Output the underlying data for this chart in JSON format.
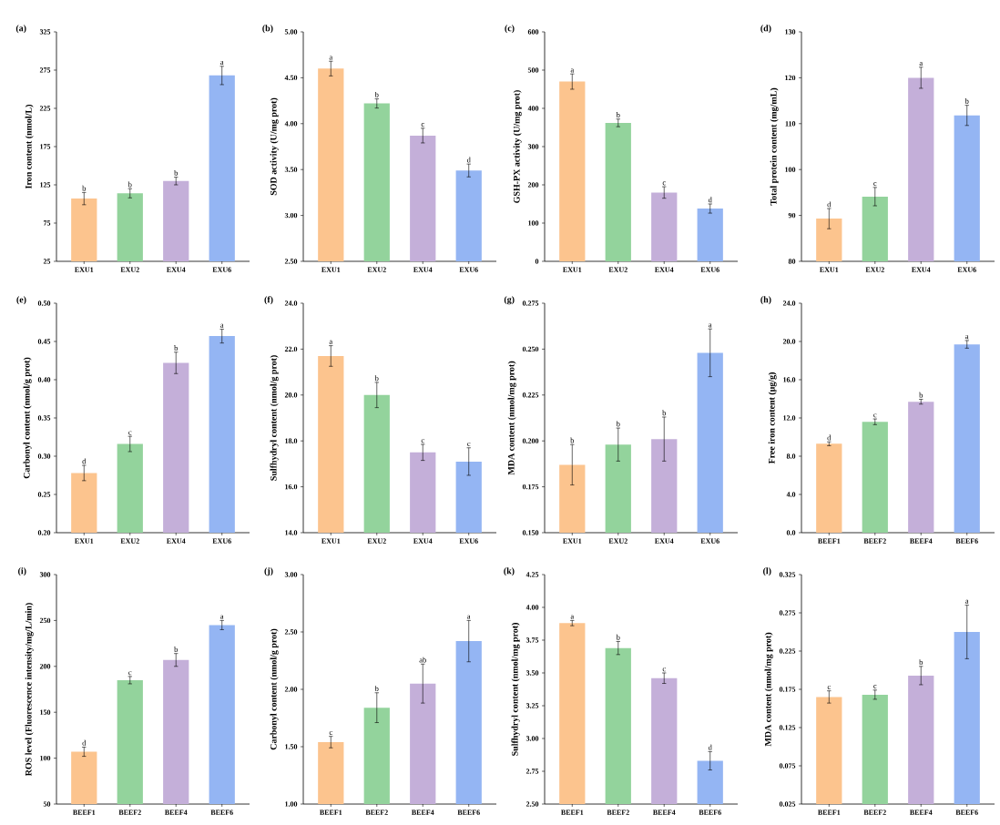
{
  "chart_data": [
    {
      "type": "bar",
      "title": "(a)",
      "ylabel": "Iron content (nmol/L)",
      "categories": [
        "EXU1",
        "EXU2",
        "EXU4",
        "EXU6"
      ],
      "values": [
        107,
        114,
        130,
        268
      ],
      "errors": [
        8,
        6,
        5,
        12
      ],
      "colors": [
        "#fcc48e",
        "#93d39c",
        "#c4afd9",
        "#94b5f3"
      ],
      "ylim": [
        25,
        325
      ],
      "yticks": [
        25,
        75,
        125,
        175,
        225,
        275,
        325
      ],
      "annotations": [
        {
          "text": "b",
          "x": "EXU1",
          "y": 115
        },
        {
          "text": "b",
          "x": "EXU2",
          "y": 120
        },
        {
          "text": "b",
          "x": "EXU4",
          "y": 135
        },
        {
          "text": "a",
          "x": "EXU6",
          "y": 280
        }
      ]
    },
    {
      "type": "bar",
      "title": "(b)",
      "ylabel": "SOD activity (U/mg prot)",
      "categories": [
        "EXU1",
        "EXU2",
        "EXU4",
        "EXU6"
      ],
      "values": [
        4.6,
        4.22,
        3.87,
        3.49
      ],
      "errors": [
        0.08,
        0.05,
        0.08,
        0.07
      ],
      "colors": [
        "#fcc48e",
        "#93d39c",
        "#c4afd9",
        "#94b5f3"
      ],
      "ylim": [
        2.5,
        5.0
      ],
      "yticks": [
        {
          "value": 2.5,
          "label": "2.50"
        },
        {
          "value": 3.0,
          "label": "3.00"
        },
        {
          "value": 3.5,
          "label": "3.50"
        },
        {
          "value": 4.0,
          "label": "4.00"
        },
        {
          "value": 4.5,
          "label": "4.50"
        },
        {
          "value": 5.0,
          "label": "5.00"
        }
      ],
      "annotations": [
        {
          "text": "a",
          "x": "EXU1",
          "y": 4.68
        },
        {
          "text": "b",
          "x": "EXU2",
          "y": 4.27
        },
        {
          "text": "c",
          "x": "EXU4",
          "y": 3.95
        },
        {
          "text": "d",
          "x": "EXU6",
          "y": 3.56
        }
      ]
    },
    {
      "type": "bar",
      "title": "(c)",
      "ylabel": "GSH-PX activity (U/mg prot)",
      "categories": [
        "EXU1",
        "EXU2",
        "EXU4",
        "EXU6"
      ],
      "values": [
        470,
        362,
        180,
        138
      ],
      "errors": [
        20,
        10,
        15,
        12
      ],
      "colors": [
        "#fcc48e",
        "#93d39c",
        "#c4afd9",
        "#94b5f3"
      ],
      "ylim": [
        0,
        600
      ],
      "yticks": [
        0,
        100,
        200,
        300,
        400,
        500,
        600
      ],
      "annotations": [
        {
          "text": "a",
          "x": "EXU1",
          "y": 490
        },
        {
          "text": "b",
          "x": "EXU2",
          "y": 372
        },
        {
          "text": "c",
          "x": "EXU4",
          "y": 195
        },
        {
          "text": "d",
          "x": "EXU6",
          "y": 150
        }
      ]
    },
    {
      "type": "bar",
      "title": "(d)",
      "ylabel": "Total protein content (mg/mL)",
      "categories": [
        "EXU1",
        "EXU2",
        "EXU4",
        "EXU6"
      ],
      "values": [
        89.3,
        94.1,
        120.0,
        111.8
      ],
      "errors": [
        2.2,
        2.0,
        2.3,
        2.2
      ],
      "colors": [
        "#fcc48e",
        "#93d39c",
        "#c4afd9",
        "#94b5f3"
      ],
      "ylim": [
        80,
        130
      ],
      "yticks": [
        80,
        90,
        100,
        110,
        120,
        130
      ],
      "annotations": [
        {
          "text": "d",
          "x": "EXU1",
          "y": 91.5
        },
        {
          "text": "c",
          "x": "EXU2",
          "y": 96.1
        },
        {
          "text": "a",
          "x": "EXU4",
          "y": 122.3
        },
        {
          "text": "b",
          "x": "EXU6",
          "y": 114.0
        }
      ]
    },
    {
      "type": "bar",
      "title": "(e)",
      "ylabel": "Carbonyl content (nmol/g prot)",
      "categories": [
        "EXU1",
        "EXU2",
        "EXU4",
        "EXU6"
      ],
      "values": [
        0.278,
        0.316,
        0.422,
        0.457
      ],
      "errors": [
        0.01,
        0.01,
        0.014,
        0.009
      ],
      "colors": [
        "#fcc48e",
        "#93d39c",
        "#c4afd9",
        "#94b5f3"
      ],
      "ylim": [
        0.2,
        0.5
      ],
      "yticks": [
        {
          "value": 0.2,
          "label": "0.20"
        },
        {
          "value": 0.25,
          "label": "0.25"
        },
        {
          "value": 0.3,
          "label": "0.30"
        },
        {
          "value": 0.35,
          "label": "0.35"
        },
        {
          "value": 0.4,
          "label": "0.40"
        },
        {
          "value": 0.45,
          "label": "0.45"
        },
        {
          "value": 0.5,
          "label": "0.50"
        }
      ],
      "annotations": [
        {
          "text": "d",
          "x": "EXU1",
          "y": 0.288
        },
        {
          "text": "c",
          "x": "EXU2",
          "y": 0.326
        },
        {
          "text": "b",
          "x": "EXU4",
          "y": 0.436
        },
        {
          "text": "a",
          "x": "EXU6",
          "y": 0.466
        }
      ]
    },
    {
      "type": "bar",
      "title": "(f)",
      "ylabel": "Sulfhydryl content (nmol/g prot)",
      "categories": [
        "EXU1",
        "EXU2",
        "EXU4",
        "EXU6"
      ],
      "values": [
        21.7,
        20.0,
        17.5,
        17.1
      ],
      "errors": [
        0.45,
        0.55,
        0.35,
        0.6
      ],
      "colors": [
        "#fcc48e",
        "#93d39c",
        "#c4afd9",
        "#94b5f3"
      ],
      "ylim": [
        14.0,
        24.0
      ],
      "yticks": [
        {
          "value": 14,
          "label": "14.0"
        },
        {
          "value": 16,
          "label": "16.0"
        },
        {
          "value": 18,
          "label": "18.0"
        },
        {
          "value": 20,
          "label": "20.0"
        },
        {
          "value": 22,
          "label": "22.0"
        },
        {
          "value": 24,
          "label": "24.0"
        }
      ],
      "annotations": [
        {
          "text": "a",
          "x": "EXU1",
          "y": 22.15
        },
        {
          "text": "b",
          "x": "EXU2",
          "y": 20.55
        },
        {
          "text": "c",
          "x": "EXU4",
          "y": 17.85
        },
        {
          "text": "c",
          "x": "EXU6",
          "y": 17.7
        }
      ]
    },
    {
      "type": "bar",
      "title": "(g)",
      "ylabel": "MDA content (nmol/mg prot)",
      "categories": [
        "EXU1",
        "EXU2",
        "EXU4",
        "EXU6"
      ],
      "values": [
        0.187,
        0.198,
        0.201,
        0.248
      ],
      "errors": [
        0.011,
        0.009,
        0.012,
        0.013
      ],
      "colors": [
        "#fcc48e",
        "#93d39c",
        "#c4afd9",
        "#94b5f3"
      ],
      "ylim": [
        0.15,
        0.275
      ],
      "yticks": [
        {
          "value": 0.15,
          "label": "0.150"
        },
        0.175,
        {
          "value": 0.2,
          "label": "0.200"
        },
        0.225,
        {
          "value": 0.25,
          "label": "0.250"
        },
        0.275
      ],
      "annotations": [
        {
          "text": "b",
          "x": "EXU1",
          "y": 0.198
        },
        {
          "text": "b",
          "x": "EXU2",
          "y": 0.207
        },
        {
          "text": "b",
          "x": "EXU4",
          "y": 0.213
        },
        {
          "text": "a",
          "x": "EXU6",
          "y": 0.261
        }
      ]
    },
    {
      "type": "bar",
      "title": "(h)",
      "ylabel": "Free iron content (μg/g)",
      "categories": [
        "BEEF1",
        "BEEF2",
        "BEEF4",
        "BEEF6"
      ],
      "values": [
        9.3,
        11.6,
        13.7,
        19.7
      ],
      "errors": [
        0.2,
        0.3,
        0.25,
        0.4
      ],
      "colors": [
        "#fcc48e",
        "#93d39c",
        "#c4afd9",
        "#94b5f3"
      ],
      "ylim": [
        0,
        24
      ],
      "yticks": [
        {
          "value": 0,
          "label": "0.0"
        },
        {
          "value": 4,
          "label": "4.0"
        },
        {
          "value": 8,
          "label": "8.0"
        },
        {
          "value": 12,
          "label": "12.0"
        },
        {
          "value": 16,
          "label": "16.0"
        },
        {
          "value": 20,
          "label": "20.0"
        },
        {
          "value": 24,
          "label": "24.0"
        }
      ],
      "annotations": [
        {
          "text": "d",
          "x": "BEEF1",
          "y": 9.5
        },
        {
          "text": "c",
          "x": "BEEF2",
          "y": 11.9
        },
        {
          "text": "b",
          "x": "BEEF4",
          "y": 13.95
        },
        {
          "text": "a",
          "x": "BEEF6",
          "y": 20.1
        }
      ]
    },
    {
      "type": "bar",
      "title": "(i)",
      "ylabel": "ROS level (Fluorescence intensity/mg/L/min)",
      "categories": [
        "BEEF1",
        "BEEF2",
        "BEEF4",
        "BEEF6"
      ],
      "values": [
        107,
        185,
        207,
        245
      ],
      "errors": [
        5,
        4,
        7,
        5
      ],
      "colors": [
        "#fcc48e",
        "#93d39c",
        "#c4afd9",
        "#94b5f3"
      ],
      "ylim": [
        50,
        300
      ],
      "yticks": [
        50,
        100,
        150,
        200,
        250,
        300
      ],
      "annotations": [
        {
          "text": "d",
          "x": "BEEF1",
          "y": 112
        },
        {
          "text": "c",
          "x": "BEEF2",
          "y": 189
        },
        {
          "text": "b",
          "x": "BEEF4",
          "y": 214
        },
        {
          "text": "a",
          "x": "BEEF6",
          "y": 250
        }
      ]
    },
    {
      "type": "bar",
      "title": "(j)",
      "ylabel": "Carbonyl content (nmol/g prot)",
      "categories": [
        "BEEF1",
        "BEEF2",
        "BEEF4",
        "BEEF6"
      ],
      "values": [
        1.54,
        1.84,
        2.05,
        2.42
      ],
      "errors": [
        0.05,
        0.13,
        0.17,
        0.18
      ],
      "colors": [
        "#fcc48e",
        "#93d39c",
        "#c4afd9",
        "#94b5f3"
      ],
      "ylim": [
        1.0,
        3.0
      ],
      "yticks": [
        {
          "value": 1.0,
          "label": "1.00"
        },
        {
          "value": 1.5,
          "label": "1.50"
        },
        {
          "value": 2.0,
          "label": "2.00"
        },
        {
          "value": 2.5,
          "label": "2.50"
        },
        {
          "value": 3.0,
          "label": "3.00"
        }
      ],
      "annotations": [
        {
          "text": "c",
          "x": "BEEF1",
          "y": 1.59
        },
        {
          "text": "b",
          "x": "BEEF2",
          "y": 1.97
        },
        {
          "text": "ab",
          "x": "BEEF4",
          "y": 2.22
        },
        {
          "text": "a",
          "x": "BEEF6",
          "y": 2.6
        }
      ]
    },
    {
      "type": "bar",
      "title": "(k)",
      "ylabel": "Sulfhydryl content (nmol/mg prot)",
      "categories": [
        "BEEF1",
        "BEEF2",
        "BEEF4",
        "BEEF6"
      ],
      "values": [
        3.88,
        3.69,
        3.46,
        2.83
      ],
      "errors": [
        0.02,
        0.05,
        0.04,
        0.07
      ],
      "colors": [
        "#fcc48e",
        "#93d39c",
        "#c4afd9",
        "#94b5f3"
      ],
      "ylim": [
        2.5,
        4.25
      ],
      "yticks": [
        {
          "value": 2.5,
          "label": "2.50"
        },
        2.75,
        {
          "value": 3.0,
          "label": "3.00"
        },
        3.25,
        {
          "value": 3.5,
          "label": "3.50"
        },
        3.75,
        {
          "value": 4.0,
          "label": "4.00"
        },
        4.25
      ],
      "annotations": [
        {
          "text": "a",
          "x": "BEEF1",
          "y": 3.9
        },
        {
          "text": "b",
          "x": "BEEF2",
          "y": 3.74
        },
        {
          "text": "c",
          "x": "BEEF4",
          "y": 3.5
        },
        {
          "text": "d",
          "x": "BEEF6",
          "y": 2.9
        }
      ]
    },
    {
      "type": "bar",
      "title": "(l)",
      "ylabel": "MDA content (nmol/mg prot)",
      "categories": [
        "BEEF1",
        "BEEF2",
        "BEEF4",
        "BEEF6"
      ],
      "values": [
        0.165,
        0.168,
        0.193,
        0.25
      ],
      "errors": [
        0.008,
        0.006,
        0.012,
        0.035
      ],
      "colors": [
        "#fcc48e",
        "#93d39c",
        "#c4afd9",
        "#94b5f3"
      ],
      "ylim": [
        0.025,
        0.325
      ],
      "yticks": [
        0.025,
        0.075,
        0.125,
        0.175,
        0.225,
        0.275,
        0.325
      ],
      "annotations": [
        {
          "text": "c",
          "x": "BEEF1",
          "y": 0.173
        },
        {
          "text": "c",
          "x": "BEEF2",
          "y": 0.174
        },
        {
          "text": "b",
          "x": "BEEF4",
          "y": 0.205
        },
        {
          "text": "a",
          "x": "BEEF6",
          "y": 0.285
        }
      ]
    }
  ]
}
